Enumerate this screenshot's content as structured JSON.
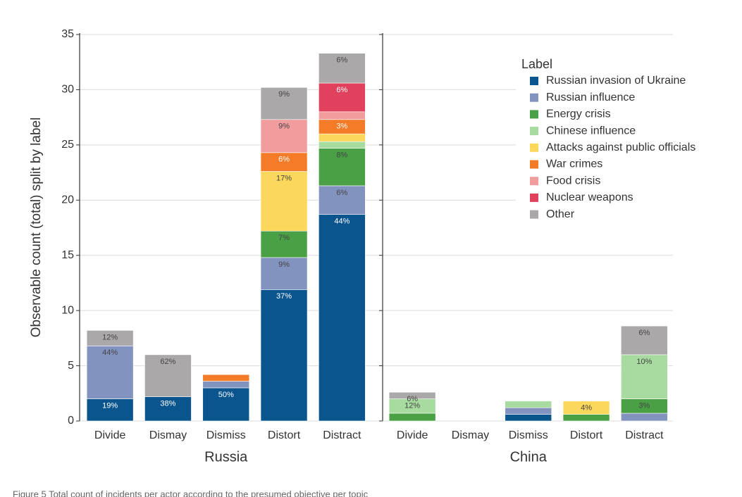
{
  "chart_data": [
    {
      "type": "stacked_bar",
      "title": "Russia",
      "ylabel": "Observable count (total) split by label",
      "legend_title": "Label",
      "legend": "upper right",
      "categories": [
        "Divide",
        "Dismay",
        "Dismiss",
        "Distort",
        "Distract"
      ],
      "ylim": [
        0,
        35
      ],
      "yticks": [
        0,
        5,
        10,
        15,
        20,
        25,
        30,
        35
      ],
      "grid": true,
      "series": [
        {
          "name": "Russian invasion of Ukraine",
          "color": "#0b558f",
          "values": [
            2.0,
            2.2,
            3.0,
            11.9,
            18.7
          ],
          "labels": [
            "19%",
            "38%",
            "50%",
            "37%",
            "44%"
          ]
        },
        {
          "name": "Russian influence",
          "color": "#8393c0",
          "values": [
            4.8,
            0,
            0.6,
            2.9,
            2.6
          ],
          "labels": [
            "44%",
            null,
            null,
            "9%",
            "6%"
          ]
        },
        {
          "name": "Energy crisis",
          "color": "#4aa045",
          "values": [
            0,
            0,
            0,
            2.4,
            3.4
          ],
          "labels": [
            null,
            null,
            null,
            "7%",
            "8%"
          ]
        },
        {
          "name": "Chinese influence",
          "color": "#a7dba0",
          "values": [
            0,
            0,
            0,
            0,
            0.6
          ],
          "labels": [
            null,
            null,
            null,
            null,
            null
          ]
        },
        {
          "name": "Attacks against public officials",
          "color": "#fbd75b",
          "values": [
            0,
            0,
            0,
            5.4,
            0.7
          ],
          "labels": [
            null,
            null,
            null,
            "17%",
            null
          ]
        },
        {
          "name": "War crimes",
          "color": "#f47b27",
          "values": [
            0,
            0,
            0.6,
            1.7,
            1.3
          ],
          "labels": [
            null,
            null,
            null,
            "6%",
            "3%"
          ]
        },
        {
          "name": "Food crisis",
          "color": "#f19d9d",
          "values": [
            0,
            0,
            0,
            3.0,
            0.7
          ],
          "labels": [
            null,
            null,
            null,
            "9%",
            null
          ]
        },
        {
          "name": "Nuclear weapons",
          "color": "#e0425e",
          "values": [
            0,
            0,
            0,
            0,
            2.6
          ],
          "labels": [
            null,
            null,
            null,
            null,
            "6%"
          ]
        },
        {
          "name": "Other",
          "color": "#aaa8a8",
          "values": [
            1.4,
            3.8,
            0,
            2.9,
            2.7
          ],
          "labels": [
            "12%",
            "62%",
            null,
            "9%",
            "6%"
          ]
        }
      ]
    },
    {
      "type": "stacked_bar",
      "title": "China",
      "categories": [
        "Divide",
        "Dismay",
        "Dismiss",
        "Distort",
        "Distract"
      ],
      "ylim": [
        0,
        35
      ],
      "yticks": [
        0,
        5,
        10,
        15,
        20,
        25,
        30,
        35
      ],
      "grid": true,
      "series": [
        {
          "name": "Russian invasion of Ukraine",
          "color": "#0b558f",
          "values": [
            0,
            0,
            0.6,
            0,
            0
          ],
          "labels": [
            null,
            null,
            null,
            null,
            null
          ]
        },
        {
          "name": "Russian influence",
          "color": "#8393c0",
          "values": [
            0,
            0,
            0.6,
            0,
            0.7
          ],
          "labels": [
            null,
            null,
            null,
            null,
            null
          ]
        },
        {
          "name": "Energy crisis",
          "color": "#4aa045",
          "values": [
            0.7,
            0,
            0,
            0.6,
            1.3
          ],
          "labels": [
            null,
            null,
            null,
            null,
            "3%"
          ]
        },
        {
          "name": "Chinese influence",
          "color": "#a7dba0",
          "values": [
            1.3,
            0,
            0.6,
            0,
            4.0
          ],
          "labels": [
            "12%",
            null,
            null,
            null,
            "10%"
          ]
        },
        {
          "name": "Attacks against public officials",
          "color": "#fbd75b",
          "values": [
            0,
            0,
            0,
            1.2,
            0
          ],
          "labels": [
            null,
            null,
            null,
            "4%",
            null
          ]
        },
        {
          "name": "War crimes",
          "color": "#f47b27",
          "values": [
            0,
            0,
            0,
            0,
            0
          ],
          "labels": [
            null,
            null,
            null,
            null,
            null
          ]
        },
        {
          "name": "Food crisis",
          "color": "#f19d9d",
          "values": [
            0,
            0,
            0,
            0,
            0
          ],
          "labels": [
            null,
            null,
            null,
            null,
            null
          ]
        },
        {
          "name": "Nuclear weapons",
          "color": "#e0425e",
          "values": [
            0,
            0,
            0,
            0,
            0
          ],
          "labels": [
            null,
            null,
            null,
            null,
            null
          ]
        },
        {
          "name": "Other",
          "color": "#aaa8a8",
          "values": [
            0.6,
            0,
            0,
            0,
            2.6
          ],
          "labels": [
            "6%",
            null,
            null,
            null,
            "6%"
          ]
        }
      ]
    }
  ],
  "caption": "Figure 5 Total count of incidents per actor according to the presumed objective per topic"
}
